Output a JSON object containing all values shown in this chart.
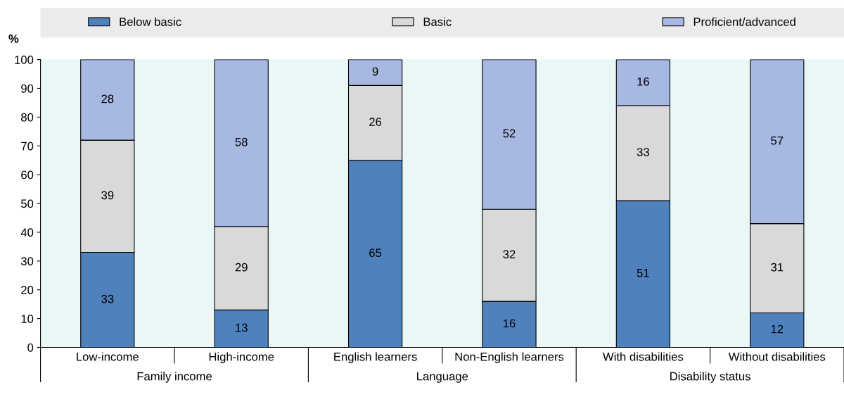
{
  "chart_data": {
    "type": "bar",
    "stacked": true,
    "ylabel": "%",
    "categories": [
      "Low-income",
      "High-income",
      "English learners",
      "Non-English learners",
      "With disabilities",
      "Without disabilities"
    ],
    "series": [
      {
        "name": "Below basic",
        "color": "#4f81bd",
        "values": [
          33,
          13,
          65,
          16,
          51,
          12
        ]
      },
      {
        "name": "Basic",
        "color": "#d9d9d9",
        "values": [
          39,
          29,
          26,
          32,
          33,
          31
        ]
      },
      {
        "name": "Proficient/advanced",
        "color": "#a7b8e2",
        "values": [
          28,
          58,
          9,
          52,
          16,
          57
        ]
      }
    ],
    "ylim": [
      0,
      100
    ],
    "yticks": [
      0,
      10,
      20,
      30,
      40,
      50,
      60,
      70,
      80,
      90,
      100
    ],
    "data_labels": true,
    "legend": "top",
    "grid": false,
    "annotations": [
      "Family income",
      "Language",
      "Disability status"
    ]
  }
}
